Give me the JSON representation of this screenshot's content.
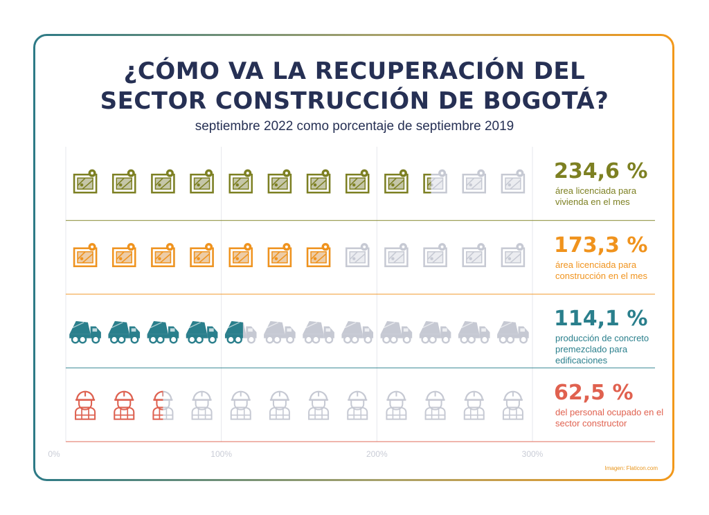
{
  "title_line1": "¿CÓMO VA LA RECUPERACIÓN DEL",
  "title_line2": "SECTOR CONSTRUCCIÓN DE BOGOTÁ?",
  "subtitle": "septiembre 2022 como porcentaje de septiembre 2019",
  "credit": "Imagen: Flaticon.com",
  "colors": {
    "navy": "#263054",
    "olive": "#7d8022",
    "orange": "#f0931d",
    "teal": "#2a7f8c",
    "coral": "#e0614f",
    "grey": "#c6c9d3"
  },
  "chart_data": {
    "type": "pictograph",
    "unit_per_icon": 25,
    "icons_per_row": 12,
    "xlim": [
      0,
      300
    ],
    "ticks": [
      "0%",
      "100%",
      "200%",
      "300%"
    ],
    "series": [
      {
        "value_label": "234,6 %",
        "value": 234.6,
        "label": "área licenciada para vivienda en el mes",
        "icon": "plot-plan-icon",
        "color": "#7d8022"
      },
      {
        "value_label": "173,3 %",
        "value": 173.3,
        "label": "área licenciada para construcción en el mes",
        "icon": "plot-plan-icon",
        "color": "#f0931d"
      },
      {
        "value_label": "114,1 %",
        "value": 114.1,
        "label": "producción de concreto premezclado para edificaciones",
        "icon": "concrete-truck-icon",
        "color": "#2a7f8c"
      },
      {
        "value_label": "62,5 %",
        "value": 62.5,
        "label": "del personal ocupado en el sector constructor",
        "icon": "construction-worker-icon",
        "color": "#e0614f"
      }
    ]
  }
}
